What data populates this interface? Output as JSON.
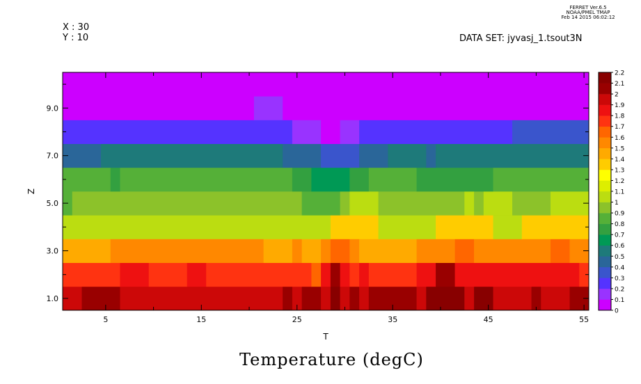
{
  "header": {
    "ferret_line1": "FERRET Ver.6.5",
    "ferret_line2": "NOAA/PMEL TMAP",
    "ferret_line3": "Feb 14 2015 06:02:12",
    "x_info": "X : 30",
    "y_info": "Y : 10",
    "dataset": "DATA SET: jyvasj_1.tsout3N"
  },
  "chart_data": {
    "type": "heatmap",
    "title": "Temperature (degC)",
    "xlabel": "T",
    "ylabel": "Z",
    "xlim": [
      0.5,
      55.5
    ],
    "ylim": [
      0.5,
      10.5
    ],
    "x_ticks": [
      5,
      15,
      25,
      35,
      45,
      55
    ],
    "x_tick_labels": [
      "5",
      "15",
      "25",
      "35",
      "45",
      "55"
    ],
    "y_ticks": [
      1,
      3,
      5,
      7,
      9
    ],
    "y_tick_labels": [
      "1.0",
      "3.0",
      "5.0",
      "7.0",
      "9.0"
    ],
    "colorbar": {
      "levels": [
        0,
        0.1,
        0.2,
        0.3,
        0.4,
        0.5,
        0.6,
        0.7,
        0.8,
        0.9,
        1,
        1.1,
        1.2,
        1.3,
        1.4,
        1.5,
        1.6,
        1.7,
        1.8,
        1.9,
        2,
        2.1,
        2.2
      ],
      "labels": [
        "0",
        "0.1",
        "0.2",
        "0.3",
        "0.4",
        "0.5",
        "0.6",
        "0.7",
        "0.8",
        "0.9",
        "1",
        "1.1",
        "1.2",
        "1.3",
        "1.4",
        "1.5",
        "1.6",
        "1.7",
        "1.8",
        "1.9",
        "2",
        "2.1",
        "2.2"
      ],
      "colors": [
        "#cc00ff",
        "#9933ff",
        "#5533ff",
        "#3a55cc",
        "#2a6699",
        "#1e7a7a",
        "#009955",
        "#33a040",
        "#55b038",
        "#8cc22a",
        "#bbdd11",
        "#ddee00",
        "#ffff00",
        "#ffcc00",
        "#ffaa00",
        "#ff8800",
        "#ff6600",
        "#ff3311",
        "#ee1111",
        "#cc0808",
        "#990000",
        "#880000"
      ]
    },
    "rows": [
      {
        "z": 1,
        "runs": [
          [
            1,
            2,
            1.95
          ],
          [
            3,
            6,
            2.05
          ],
          [
            7,
            23,
            1.95
          ],
          [
            24,
            24,
            2.05
          ],
          [
            25,
            25,
            1.95
          ],
          [
            26,
            27,
            2.05
          ],
          [
            28,
            28,
            1.95
          ],
          [
            29,
            29,
            2.15
          ],
          [
            30,
            30,
            1.95
          ],
          [
            31,
            31,
            2.05
          ],
          [
            32,
            32,
            1.95
          ],
          [
            33,
            37,
            2.05
          ],
          [
            38,
            38,
            1.95
          ],
          [
            39,
            42,
            2.15
          ],
          [
            43,
            43,
            1.95
          ],
          [
            44,
            45,
            2.15
          ],
          [
            46,
            49,
            1.95
          ],
          [
            50,
            50,
            2.05
          ],
          [
            51,
            53,
            1.95
          ],
          [
            54,
            55,
            2.05
          ]
        ]
      },
      {
        "z": 2,
        "runs": [
          [
            1,
            6,
            1.75
          ],
          [
            7,
            9,
            1.85
          ],
          [
            10,
            13,
            1.75
          ],
          [
            14,
            15,
            1.85
          ],
          [
            16,
            26,
            1.75
          ],
          [
            27,
            27,
            1.65
          ],
          [
            28,
            28,
            1.85
          ],
          [
            29,
            29,
            2.05
          ],
          [
            30,
            30,
            1.85
          ],
          [
            31,
            31,
            1.75
          ],
          [
            32,
            32,
            1.85
          ],
          [
            33,
            37,
            1.75
          ],
          [
            38,
            39,
            1.85
          ],
          [
            40,
            41,
            2.05
          ],
          [
            42,
            54,
            1.85
          ],
          [
            55,
            55,
            1.75
          ]
        ]
      },
      {
        "z": 3,
        "runs": [
          [
            1,
            5,
            1.45
          ],
          [
            6,
            21,
            1.55
          ],
          [
            22,
            24,
            1.45
          ],
          [
            25,
            25,
            1.55
          ],
          [
            26,
            27,
            1.45
          ],
          [
            28,
            28,
            1.55
          ],
          [
            29,
            30,
            1.65
          ],
          [
            31,
            31,
            1.55
          ],
          [
            32,
            37,
            1.45
          ],
          [
            38,
            41,
            1.55
          ],
          [
            42,
            43,
            1.65
          ],
          [
            44,
            51,
            1.55
          ],
          [
            52,
            53,
            1.65
          ],
          [
            54,
            55,
            1.55
          ]
        ]
      },
      {
        "z": 4,
        "runs": [
          [
            1,
            28,
            1.05
          ],
          [
            29,
            33,
            1.35
          ],
          [
            34,
            39,
            1.05
          ],
          [
            40,
            45,
            1.35
          ],
          [
            46,
            48,
            1.05
          ],
          [
            49,
            55,
            1.35
          ]
        ]
      },
      {
        "z": 5,
        "runs": [
          [
            1,
            1,
            0.85
          ],
          [
            2,
            25,
            0.95
          ],
          [
            26,
            29,
            0.85
          ],
          [
            30,
            30,
            0.95
          ],
          [
            31,
            33,
            1.05
          ],
          [
            34,
            42,
            0.95
          ],
          [
            43,
            43,
            1.05
          ],
          [
            44,
            44,
            0.95
          ],
          [
            45,
            47,
            1.05
          ],
          [
            48,
            51,
            0.95
          ],
          [
            52,
            55,
            1.05
          ]
        ]
      },
      {
        "z": 6,
        "runs": [
          [
            1,
            5,
            0.85
          ],
          [
            6,
            6,
            0.75
          ],
          [
            7,
            24,
            0.85
          ],
          [
            25,
            26,
            0.75
          ],
          [
            27,
            30,
            0.65
          ],
          [
            31,
            32,
            0.75
          ],
          [
            33,
            37,
            0.85
          ],
          [
            38,
            45,
            0.75
          ],
          [
            46,
            55,
            0.85
          ]
        ]
      },
      {
        "z": 7,
        "runs": [
          [
            1,
            4,
            0.45
          ],
          [
            5,
            23,
            0.55
          ],
          [
            24,
            27,
            0.45
          ],
          [
            28,
            31,
            0.35
          ],
          [
            32,
            34,
            0.45
          ],
          [
            35,
            38,
            0.55
          ],
          [
            39,
            39,
            0.45
          ],
          [
            40,
            55,
            0.55
          ]
        ]
      },
      {
        "z": 8,
        "runs": [
          [
            1,
            24,
            0.25
          ],
          [
            25,
            27,
            0.15
          ],
          [
            28,
            29,
            0.05
          ],
          [
            30,
            31,
            0.15
          ],
          [
            32,
            47,
            0.25
          ],
          [
            48,
            55,
            0.35
          ]
        ]
      },
      {
        "z": 9,
        "runs": [
          [
            1,
            20,
            0.05
          ],
          [
            21,
            23,
            0.15
          ],
          [
            24,
            55,
            0.05
          ]
        ]
      },
      {
        "z": 10,
        "runs": [
          [
            1,
            55,
            0.05
          ]
        ]
      }
    ]
  }
}
